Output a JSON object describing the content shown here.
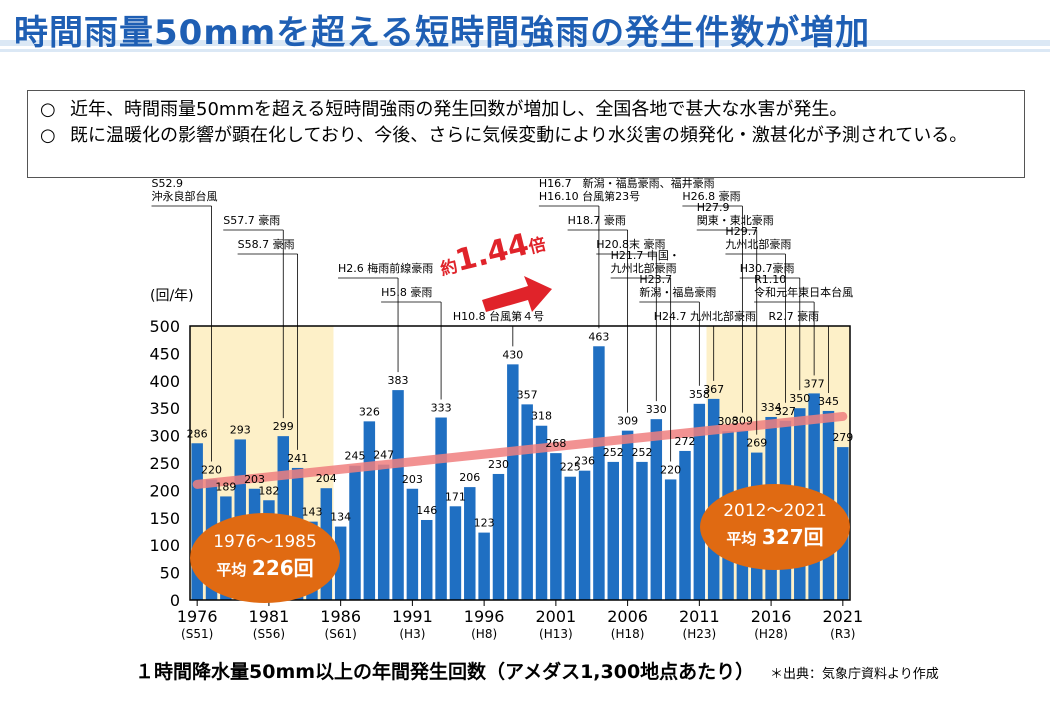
{
  "page": {
    "title": "時間雨量50mmを超える短時間強雨の発生件数が増加",
    "bullets": [
      {
        "mark": "○",
        "text": "近年、時間雨量50mmを超える短時間強雨の発生回数が増加し、全国各地で甚大な水害が発生。"
      },
      {
        "mark": "○",
        "text": "既に温暖化の影響が顕在化しており、今後、さらに気候変動により水災害の頻発化・激甚化が予測されている。"
      }
    ],
    "caption": "１時間降水量50mm以上の年間発生回数（アメダス1,300地点あたり）",
    "source": "＊出典：気象庁資料より作成",
    "trend_note": {
      "prefix": "約",
      "value": "1.44",
      "suffix": "倍"
    }
  },
  "colors": {
    "bar": "#1f6fc2",
    "trend": "#f08080",
    "highlight": "#fdf0c8",
    "bubble": "#e06a12",
    "annotation_red": "#e0232a"
  },
  "chart_data": {
    "type": "bar",
    "ylabel": "(回/年)",
    "ylim": [
      0,
      500
    ],
    "yticks": [
      0,
      50,
      100,
      150,
      200,
      250,
      300,
      350,
      400,
      450,
      500
    ],
    "x": [
      1976,
      1977,
      1978,
      1979,
      1980,
      1981,
      1982,
      1983,
      1984,
      1985,
      1986,
      1987,
      1988,
      1989,
      1990,
      1991,
      1992,
      1993,
      1994,
      1995,
      1996,
      1997,
      1998,
      1999,
      2000,
      2001,
      2002,
      2003,
      2004,
      2005,
      2006,
      2007,
      2008,
      2009,
      2010,
      2011,
      2012,
      2013,
      2014,
      2015,
      2016,
      2017,
      2018,
      2019,
      2020,
      2021
    ],
    "values": [
      286,
      220,
      189,
      293,
      203,
      182,
      299,
      241,
      143,
      204,
      134,
      245,
      326,
      247,
      383,
      203,
      146,
      333,
      171,
      206,
      123,
      230,
      430,
      357,
      318,
      268,
      225,
      236,
      463,
      252,
      309,
      252,
      330,
      220,
      272,
      358,
      367,
      308,
      309,
      269,
      334,
      327,
      350,
      377,
      345,
      279
    ],
    "xtick_labels": [
      {
        "year": 1976,
        "label": "1976",
        "era": "(S51)"
      },
      {
        "year": 1981,
        "label": "1981",
        "era": "(S56)"
      },
      {
        "year": 1986,
        "label": "1986",
        "era": "(S61)"
      },
      {
        "year": 1991,
        "label": "1991",
        "era": "(H3)"
      },
      {
        "year": 1996,
        "label": "1996",
        "era": "(H8)"
      },
      {
        "year": 2001,
        "label": "2001",
        "era": "(H13)"
      },
      {
        "year": 2006,
        "label": "2006",
        "era": "(H18)"
      },
      {
        "year": 2011,
        "label": "2011",
        "era": "(H23)"
      },
      {
        "year": 2016,
        "label": "2016",
        "era": "(H28)"
      },
      {
        "year": 2021,
        "label": "2021",
        "era": "(R3)"
      }
    ],
    "highlight_periods": [
      {
        "from": 1976,
        "to": 1985,
        "range_label": "1976～1985",
        "avg_prefix": "平均",
        "avg_value": "226回"
      },
      {
        "from": 2012,
        "to": 2021,
        "range_label": "2012～2021",
        "avg_prefix": "平均",
        "avg_value": "327回"
      }
    ],
    "trend_line": {
      "from_year": 1976,
      "from_value": 211,
      "to_year": 2021,
      "to_value": 335
    },
    "annotations": [
      {
        "year": 1977,
        "lines": [
          "S52.9",
          "沖永良部台風"
        ]
      },
      {
        "year": 1982,
        "lines": [
          "S57.7 豪雨"
        ]
      },
      {
        "year": 1983,
        "lines": [
          "S58.7 豪雨"
        ]
      },
      {
        "year": 1990,
        "lines": [
          "H2.6 梅雨前線豪雨"
        ]
      },
      {
        "year": 1993,
        "lines": [
          "H5.8 豪雨"
        ]
      },
      {
        "year": 1998,
        "lines": [
          "H10.8 台風第４号"
        ]
      },
      {
        "year": 2004,
        "lines": [
          "H16.7　新潟・福島豪雨、福井豪雨",
          "H16.10 台風第23号"
        ]
      },
      {
        "year": 2006,
        "lines": [
          "H18.7 豪雨"
        ]
      },
      {
        "year": 2008,
        "lines": [
          "H20.8末 豪雨"
        ]
      },
      {
        "year": 2009,
        "lines": [
          "H21.7 中国・",
          "九州北部豪雨"
        ]
      },
      {
        "year": 2011,
        "lines": [
          "H23.7",
          "新潟・福島豪雨"
        ]
      },
      {
        "year": 2012,
        "lines": [
          "H24.7 九州北部豪雨"
        ]
      },
      {
        "year": 2014,
        "lines": [
          "H26.8 豪雨"
        ]
      },
      {
        "year": 2015,
        "lines": [
          "H27.9",
          "関東・東北豪雨"
        ]
      },
      {
        "year": 2017,
        "lines": [
          "H29.7",
          "九州北部豪雨"
        ]
      },
      {
        "year": 2018,
        "lines": [
          "H30.7豪雨"
        ]
      },
      {
        "year": 2019,
        "lines": [
          "R1.10",
          "令和元年東日本台風"
        ]
      },
      {
        "year": 2020,
        "lines": [
          "R2.7 豪雨"
        ]
      }
    ]
  }
}
